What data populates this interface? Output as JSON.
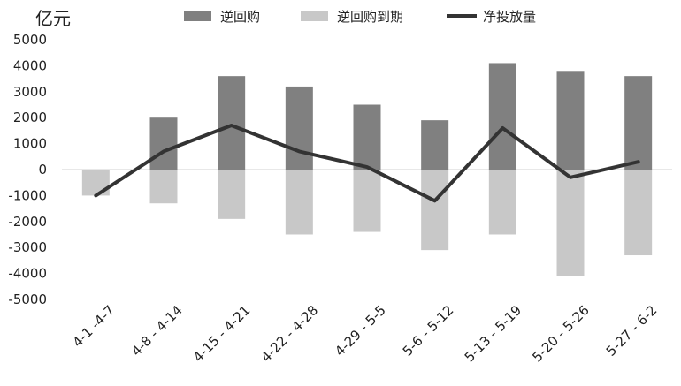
{
  "chart_data": {
    "type": "bar",
    "unit_label": "亿元",
    "categories": [
      "4-1 -4-7",
      "4-8 - 4-14",
      "4-15 - 4-21",
      "4-22 - 4-28",
      "4-29 - 5-5",
      "5-6 - 5-12",
      "5-13 - 5-19",
      "5-20 - 5-26",
      "5-27 - 6-2"
    ],
    "series": [
      {
        "name": "逆回购",
        "kind": "bar",
        "color": "#808080",
        "values": [
          0,
          2000,
          3600,
          3200,
          2500,
          1900,
          4100,
          3800,
          3600
        ]
      },
      {
        "name": "逆回购到期",
        "kind": "bar",
        "color": "#c8c8c8",
        "values": [
          -1000,
          -1300,
          -1900,
          -2500,
          -2400,
          -3100,
          -2500,
          -4100,
          -3300
        ]
      },
      {
        "name": "净投放量",
        "kind": "line",
        "color": "#333333",
        "values": [
          -1000,
          700,
          1700,
          700,
          100,
          -1200,
          1600,
          -300,
          300
        ]
      }
    ],
    "ylim": [
      -5000,
      5000
    ],
    "yticks": [
      5000,
      4000,
      3000,
      2000,
      1000,
      0,
      -1000,
      -2000,
      -3000,
      -4000,
      -5000
    ],
    "legend_position": "top",
    "grid": false
  }
}
